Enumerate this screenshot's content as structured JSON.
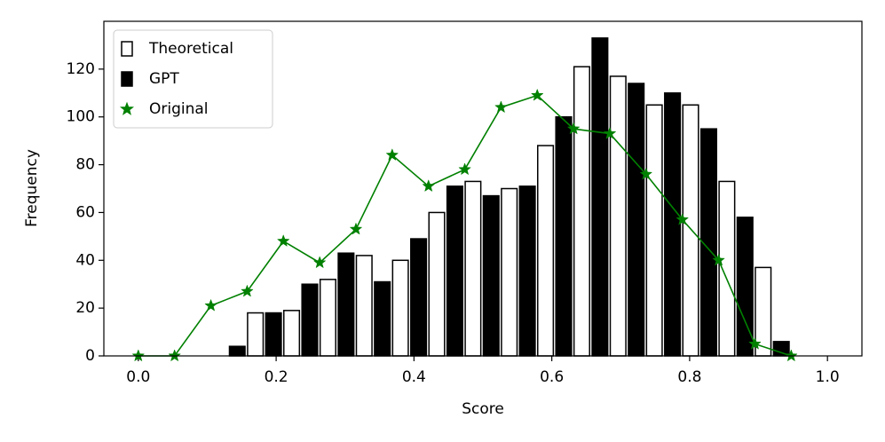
{
  "chart_data": {
    "type": "grouped_histogram",
    "x_label": "Score",
    "y_label": "Frequency",
    "bins": [
      0,
      0.0526,
      0.1053,
      0.1579,
      0.2105,
      0.2632,
      0.3158,
      0.3684,
      0.4211,
      0.4737,
      0.5263,
      0.5789,
      0.6316,
      0.6842,
      0.7368,
      0.7895,
      0.8421,
      0.8947,
      0.9474,
      1.0
    ],
    "series": [
      {
        "name": "Theoretical",
        "color": "#ffffff",
        "values": [
          0,
          0,
          0,
          18,
          19,
          32,
          42,
          40,
          60,
          73,
          70,
          88,
          121,
          117,
          105,
          105,
          73,
          37,
          0
        ]
      },
      {
        "name": "GPT",
        "color": "#000000",
        "values": [
          0,
          0,
          4,
          18,
          30,
          43,
          31,
          49,
          71,
          67,
          71,
          100,
          133,
          114,
          110,
          95,
          58,
          6,
          0
        ]
      },
      {
        "name": "Original",
        "type": "line",
        "color": "#008000",
        "x": [
          0,
          0.0526,
          0.1053,
          0.1579,
          0.2105,
          0.2632,
          0.3158,
          0.3684,
          0.4211,
          0.4737,
          0.5263,
          0.5789,
          0.6316,
          0.6842,
          0.7368,
          0.7895,
          0.8421,
          0.8947,
          0.9474
        ],
        "values": [
          0,
          0,
          21,
          27,
          48,
          39,
          53,
          84,
          71,
          78,
          104,
          109,
          95,
          93,
          76,
          57,
          40,
          5,
          0
        ]
      }
    ],
    "xlim": [
      -0.05,
      1.05
    ],
    "xticks": [
      {
        "value": 0,
        "label": "0.0"
      },
      0.2,
      0.4,
      0.6,
      0.8,
      {
        "value": 1,
        "label": "1.0"
      }
    ],
    "ylim": [
      0,
      140
    ],
    "yticks": [
      0,
      20,
      40,
      60,
      80,
      100,
      120
    ],
    "legend": "upper left",
    "grid": false
  }
}
